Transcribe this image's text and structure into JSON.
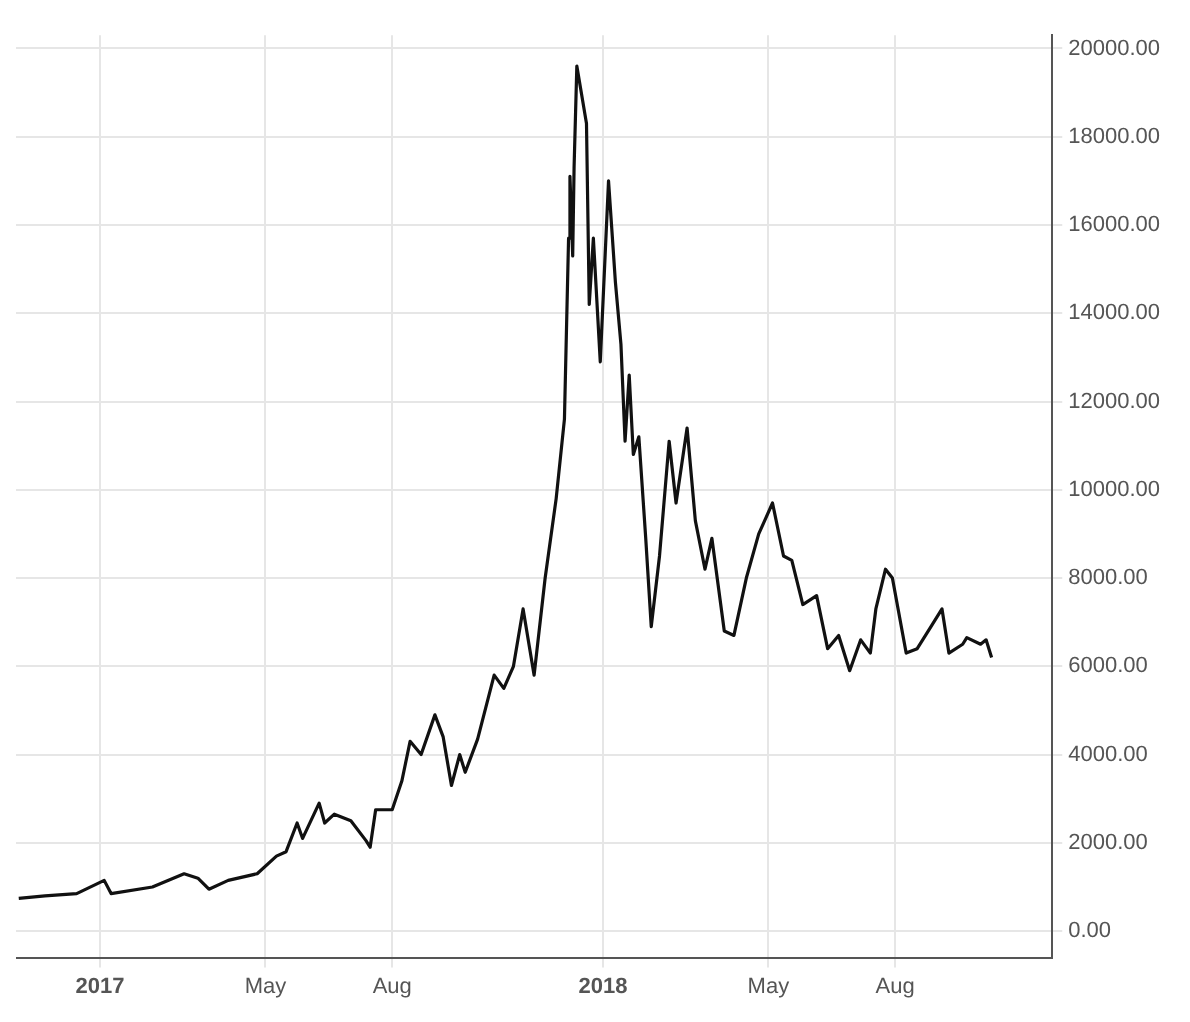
{
  "chart_data": {
    "type": "line",
    "xlim": [
      "2016-11-01",
      "2018-11-23"
    ],
    "xticks": [
      {
        "value": "2017-01-01",
        "label": "2017"
      },
      {
        "value": "2017-05-01",
        "label": "May"
      },
      {
        "value": "2017-08-01",
        "label": "Aug"
      },
      {
        "value": "2018-01-01",
        "label": "2018"
      },
      {
        "value": "2018-05-01",
        "label": "May"
      },
      {
        "value": "2018-08-01",
        "label": "Aug"
      }
    ],
    "ylim": [
      -600,
      20300
    ],
    "yticks": [
      {
        "value": 0,
        "label": "0.00"
      },
      {
        "value": 2000,
        "label": "2000.00"
      },
      {
        "value": 4000,
        "label": "4000.00"
      },
      {
        "value": 6000,
        "label": "6000.00"
      },
      {
        "value": 8000,
        "label": "8000.00"
      },
      {
        "value": 10000,
        "label": "10000.00"
      },
      {
        "value": 12000,
        "label": "12000.00"
      },
      {
        "value": 14000,
        "label": "14000.00"
      },
      {
        "value": 16000,
        "label": "16000.00"
      },
      {
        "value": 18000,
        "label": "18000.00"
      },
      {
        "value": 20000,
        "label": "20000.00"
      }
    ],
    "grid": true,
    "legend": false,
    "marker": "none",
    "line_style": "solid",
    "x": [
      "2016-11-03",
      "2016-11-22",
      "2016-12-15",
      "2017-01-04",
      "2017-01-09",
      "2017-02-08",
      "2017-03-03",
      "2017-03-13",
      "2017-03-21",
      "2017-04-04",
      "2017-04-25",
      "2017-05-09",
      "2017-05-16",
      "2017-05-24",
      "2017-05-28",
      "2017-06-09",
      "2017-06-13",
      "2017-06-20",
      "2017-07-02",
      "2017-07-13",
      "2017-07-16",
      "2017-07-20",
      "2017-08-01",
      "2017-08-08",
      "2017-08-14",
      "2017-08-22",
      "2017-09-01",
      "2017-09-07",
      "2017-09-13",
      "2017-09-19",
      "2017-09-23",
      "2017-10-02",
      "2017-10-14",
      "2017-10-21",
      "2017-10-28",
      "2017-11-04",
      "2017-11-12",
      "2017-11-20",
      "2017-11-28",
      "2017-12-04",
      "2017-12-07",
      "2017-12-08",
      "2017-12-10",
      "2017-12-11",
      "2017-12-13",
      "2017-12-20",
      "2017-12-22",
      "2017-12-25",
      "2017-12-30",
      "2018-01-05",
      "2018-01-10",
      "2018-01-14",
      "2018-01-17",
      "2018-01-20",
      "2018-01-23",
      "2018-01-27",
      "2018-02-01",
      "2018-02-05",
      "2018-02-11",
      "2018-02-18",
      "2018-02-23",
      "2018-03-03",
      "2018-03-09",
      "2018-03-16",
      "2018-03-21",
      "2018-03-30",
      "2018-04-06",
      "2018-04-15",
      "2018-04-24",
      "2018-05-04",
      "2018-05-12",
      "2018-05-18",
      "2018-05-26",
      "2018-06-05",
      "2018-06-13",
      "2018-06-21",
      "2018-06-29",
      "2018-07-07",
      "2018-07-14",
      "2018-07-18",
      "2018-07-25",
      "2018-07-30",
      "2018-08-09",
      "2018-08-17",
      "2018-08-27",
      "2018-09-04",
      "2018-09-09",
      "2018-09-19",
      "2018-09-22",
      "2018-10-02",
      "2018-10-06",
      "2018-10-10"
    ],
    "series": [
      {
        "color": "#111111",
        "values": [
          740,
          800,
          850,
          1150,
          850,
          1000,
          1300,
          1200,
          950,
          1150,
          1300,
          1700,
          1800,
          2450,
          2100,
          2900,
          2450,
          2650,
          2500,
          2050,
          1900,
          2750,
          2750,
          3400,
          4300,
          4000,
          4900,
          4400,
          3300,
          4000,
          3600,
          4350,
          5800,
          5500,
          6000,
          7300,
          5800,
          8000,
          9800,
          11600,
          15700,
          17100,
          15300,
          17300,
          19600,
          18300,
          14200,
          15700,
          12900,
          17000,
          14700,
          13300,
          11100,
          12600,
          10800,
          11200,
          8900,
          6900,
          8500,
          11100,
          9700,
          11400,
          9300,
          8200,
          8900,
          6800,
          6700,
          8000,
          9000,
          9700,
          8500,
          8400,
          7400,
          7600,
          6400,
          6700,
          5900,
          6600,
          6300,
          7300,
          8200,
          8000,
          6300,
          6400,
          6900,
          7300,
          6300,
          6500,
          6650,
          6500,
          6600,
          6200
        ]
      }
    ]
  }
}
